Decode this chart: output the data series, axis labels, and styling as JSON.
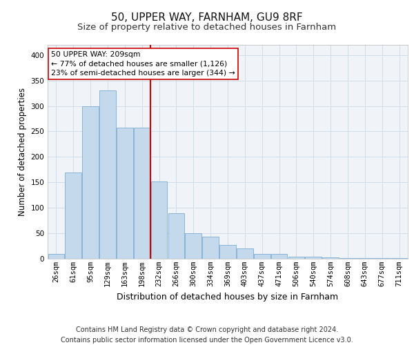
{
  "title1": "50, UPPER WAY, FARNHAM, GU9 8RF",
  "title2": "Size of property relative to detached houses in Farnham",
  "xlabel": "Distribution of detached houses by size in Farnham",
  "ylabel": "Number of detached properties",
  "categories": [
    "26sqm",
    "61sqm",
    "95sqm",
    "129sqm",
    "163sqm",
    "198sqm",
    "232sqm",
    "266sqm",
    "300sqm",
    "334sqm",
    "369sqm",
    "403sqm",
    "437sqm",
    "471sqm",
    "506sqm",
    "540sqm",
    "574sqm",
    "608sqm",
    "643sqm",
    "677sqm",
    "711sqm"
  ],
  "values": [
    10,
    170,
    300,
    330,
    258,
    258,
    152,
    90,
    50,
    43,
    27,
    20,
    10,
    9,
    4,
    4,
    3,
    1,
    1,
    2,
    2
  ],
  "bar_color": "#c5d9ed",
  "bar_edge_color": "#7aadd4",
  "vline_x": 5.5,
  "vline_color": "#cc0000",
  "annotation_text": "50 UPPER WAY: 209sqm\n← 77% of detached houses are smaller (1,126)\n23% of semi-detached houses are larger (344) →",
  "annotation_box_color": "white",
  "annotation_box_edge": "#cc0000",
  "ylim": [
    0,
    420
  ],
  "yticks": [
    0,
    50,
    100,
    150,
    200,
    250,
    300,
    350,
    400
  ],
  "grid_color": "#d0dce8",
  "footer": "Contains HM Land Registry data © Crown copyright and database right 2024.\nContains public sector information licensed under the Open Government Licence v3.0.",
  "title1_fontsize": 11,
  "title2_fontsize": 9.5,
  "xlabel_fontsize": 9,
  "ylabel_fontsize": 8.5,
  "tick_fontsize": 7.5,
  "footer_fontsize": 7
}
